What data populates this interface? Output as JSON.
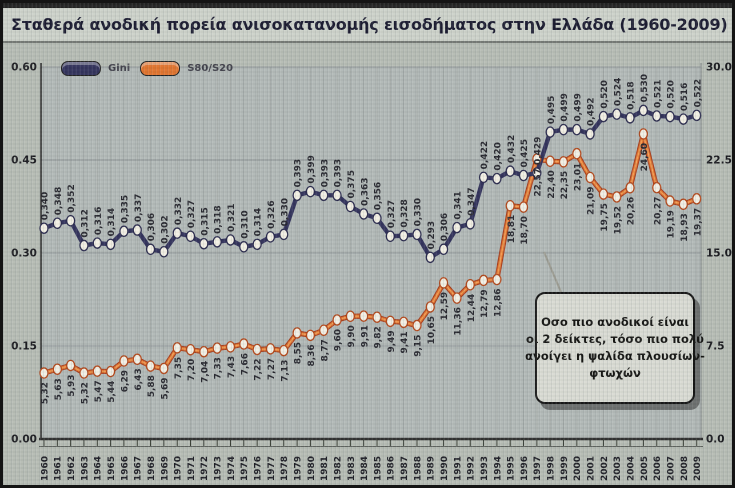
{
  "title": "Σταθερά ανοδική πορεία ανισοκατανομής εισοδήματος στην Ελλάδα (1960-2009)",
  "legend": {
    "items": [
      {
        "label": "Gini",
        "color": "#2e2e58"
      },
      {
        "label": "S80/S20",
        "color": "#e0712a"
      }
    ]
  },
  "annotation": {
    "lines": [
      "Οσο πιο ανοδικοί είναι",
      "οι 2 δείκτες, τόσο πιο πολύ",
      "ανοίγει η ψαλίδα πλουσίων-",
      "φτωχών"
    ]
  },
  "colors": {
    "gini": "#2e2e58",
    "gini_dark": "#26264a",
    "s80_main": "#e0712a",
    "s80_edge": "#a63918",
    "s80_light": "#f29a50",
    "marker_fill": "#f2efe4",
    "grid_vertical": "#a2a8a6",
    "grid_horizontal": "#8e9496",
    "axis": "#2a2a2a",
    "label_text": "#23232b",
    "background": "#b5bbb3"
  },
  "chart_data": {
    "type": "line",
    "title": "Σταθερά ανοδική πορεία ανισοκατανομής εισοδήματος στην Ελλάδα (1960-2009)",
    "x": [
      1960,
      1961,
      1962,
      1963,
      1964,
      1965,
      1966,
      1967,
      1968,
      1969,
      1970,
      1971,
      1972,
      1973,
      1974,
      1975,
      1976,
      1977,
      1978,
      1979,
      1980,
      1981,
      1982,
      1983,
      1984,
      1985,
      1986,
      1987,
      1988,
      1989,
      1990,
      1991,
      1992,
      1993,
      1994,
      1995,
      1996,
      1997,
      1998,
      1999,
      2000,
      2001,
      2002,
      2003,
      2004,
      2005,
      2006,
      2007,
      2008,
      2009
    ],
    "series": [
      {
        "name": "Gini",
        "axis": "left",
        "decimals": 3,
        "values": [
          0.34,
          0.348,
          0.352,
          0.312,
          0.316,
          0.314,
          0.335,
          0.337,
          0.306,
          0.302,
          0.332,
          0.327,
          0.315,
          0.318,
          0.321,
          0.31,
          0.314,
          0.326,
          0.33,
          0.393,
          0.399,
          0.393,
          0.393,
          0.375,
          0.363,
          0.356,
          0.327,
          0.328,
          0.33,
          0.293,
          0.306,
          0.341,
          0.347,
          0.422,
          0.42,
          0.432,
          0.425,
          0.429,
          0.495,
          0.499,
          0.499,
          0.492,
          0.52,
          0.524,
          0.518,
          0.53,
          0.521,
          0.52,
          0.516,
          0.522
        ]
      },
      {
        "name": "S80/S20",
        "axis": "right",
        "decimals": 2,
        "values": [
          5.32,
          5.63,
          5.93,
          5.32,
          5.47,
          5.44,
          6.29,
          6.43,
          5.88,
          5.69,
          7.35,
          7.2,
          7.04,
          7.33,
          7.43,
          7.66,
          7.22,
          7.27,
          7.13,
          8.55,
          8.36,
          8.77,
          9.6,
          9.9,
          9.91,
          9.82,
          9.49,
          9.41,
          9.15,
          10.65,
          12.59,
          11.36,
          12.44,
          12.79,
          12.86,
          18.81,
          18.7,
          22.57,
          22.4,
          22.35,
          23.01,
          21.09,
          19.75,
          19.52,
          20.26,
          24.6,
          20.27,
          19.19,
          18.93,
          19.37
        ]
      }
    ],
    "left_axis": {
      "ticks": [
        "0.60",
        "0.45",
        "0.30",
        "0.15",
        "0.00"
      ],
      "range": [
        0,
        0.6
      ]
    },
    "right_axis": {
      "ticks": [
        "30.0",
        "22.5",
        "15.0",
        "7.5",
        "0.0"
      ],
      "range": [
        0,
        30
      ]
    },
    "grid": true,
    "legend_position": "top-left",
    "decimal_separator": ","
  }
}
